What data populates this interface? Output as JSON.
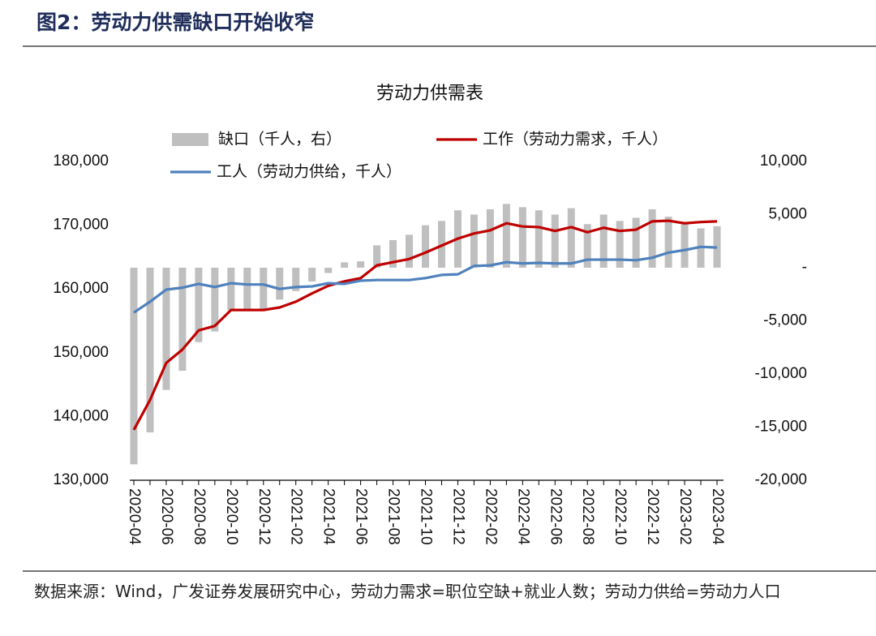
{
  "header": {
    "title": "图2：劳动力供需缺口开始收窄"
  },
  "chart_data": {
    "type": "combo",
    "title": "劳动力供需表",
    "categories": [
      "2020-04",
      null,
      "2020-06",
      null,
      "2020-08",
      null,
      "2020-10",
      null,
      "2020-12",
      null,
      "2021-02",
      null,
      "2021-04",
      null,
      "2021-06",
      null,
      "2021-08",
      null,
      "2021-10",
      null,
      "2021-12",
      null,
      "2022-02",
      null,
      "2022-04",
      null,
      "2022-06",
      null,
      "2022-08",
      null,
      "2022-10",
      null,
      "2022-12",
      null,
      "2023-02",
      null,
      "2023-04"
    ],
    "series": [
      {
        "name": "缺口（千人，右）",
        "type": "bar",
        "axis": "y2",
        "color": "#bfbfbf",
        "values": [
          -18500,
          -15500,
          -11500,
          -9700,
          -7000,
          -6000,
          -4000,
          -4000,
          -3900,
          -3000,
          -2200,
          -1300,
          -500,
          500,
          600,
          2100,
          2600,
          3100,
          4000,
          4400,
          5400,
          5000,
          5500,
          6000,
          5700,
          5400,
          5000,
          5600,
          4100,
          5000,
          4400,
          4700,
          5500,
          4800,
          4100,
          3700,
          3900
        ]
      },
      {
        "name": "工作（劳动力需求，千人）",
        "type": "line",
        "color": "#c00000",
        "values": [
          137900,
          142600,
          148400,
          150500,
          153500,
          154200,
          156700,
          156700,
          156700,
          157100,
          158000,
          159300,
          160500,
          161200,
          161700,
          163700,
          164200,
          164700,
          165700,
          166800,
          167900,
          168700,
          169200,
          170300,
          169800,
          169700,
          169100,
          169700,
          168900,
          169600,
          169100,
          169300,
          170600,
          170700,
          170300,
          170500,
          170600
        ]
      },
      {
        "name": "工人（劳动力供给，千人）",
        "type": "line",
        "color": "#4f81bd",
        "values": [
          156300,
          158000,
          159900,
          160200,
          160800,
          160300,
          160900,
          160700,
          160700,
          160000,
          160300,
          160400,
          160900,
          160800,
          161300,
          161400,
          161400,
          161400,
          161700,
          162200,
          162300,
          163600,
          163700,
          164200,
          164000,
          164100,
          164000,
          164000,
          164600,
          164600,
          164600,
          164500,
          164900,
          165700,
          166100,
          166600,
          166500
        ]
      }
    ],
    "ylim": [
      130000,
      180000
    ],
    "yticks": [
      {
        "value": 130000,
        "label": "130,000"
      },
      {
        "value": 140000,
        "label": "140,000"
      },
      {
        "value": 150000,
        "label": "150,000"
      },
      {
        "value": 160000,
        "label": "160,000"
      },
      {
        "value": 170000,
        "label": "170,000"
      },
      {
        "value": 180000,
        "label": "180,000"
      }
    ],
    "y2lim": [
      -20000,
      10000
    ],
    "y2ticks": [
      {
        "value": -20000,
        "label": "-20,000"
      },
      {
        "value": -15000,
        "label": "-15,000"
      },
      {
        "value": -10000,
        "label": "-10,000"
      },
      {
        "value": -5000,
        "label": "-5,000"
      },
      {
        "value": 0,
        "label": "-"
      },
      {
        "value": 5000,
        "label": "5,000"
      },
      {
        "value": 10000,
        "label": "10,000"
      }
    ],
    "grid": false
  },
  "source": "数据来源：Wind，广发证券发展研究中心，劳动力需求=职位空缺+就业人数；劳动力供给=劳动力人口"
}
